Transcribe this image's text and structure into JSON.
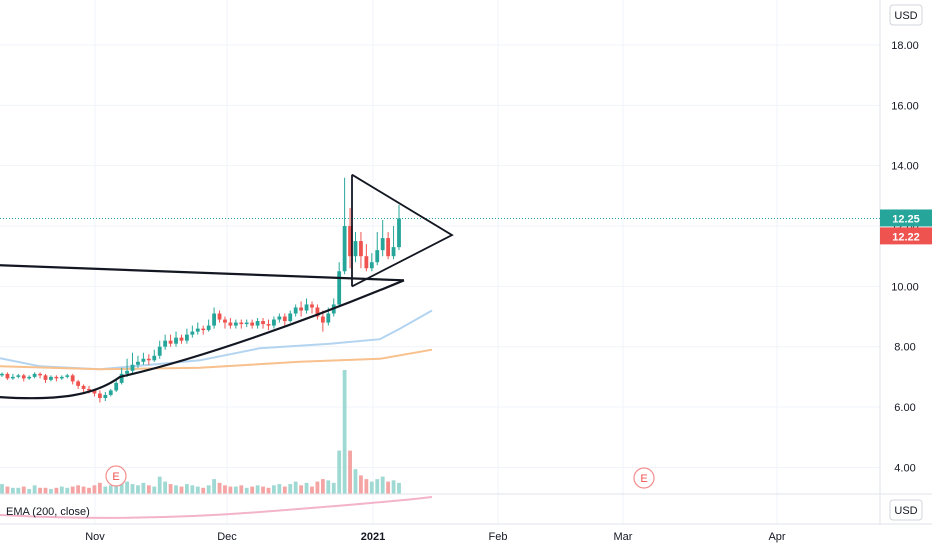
{
  "chart_data": {
    "type": "candlestick",
    "currency": "USD",
    "ylim": [
      3.0,
      19.0
    ],
    "y_ticks": [
      "18.00",
      "16.00",
      "14.00",
      "12.00",
      "10.00",
      "8.00",
      "6.00",
      "4.00"
    ],
    "x_ticks": [
      "Nov",
      "Dec",
      "2021",
      "Feb",
      "Mar",
      "Apr"
    ],
    "last_price": "12.25",
    "prev_price": "12.22",
    "candles": [
      [
        7.05,
        7.1,
        7.0,
        7.15
      ],
      [
        7.1,
        6.95,
        6.9,
        7.15
      ],
      [
        6.95,
        7.0,
        6.9,
        7.1
      ],
      [
        7.0,
        7.05,
        6.95,
        7.1
      ],
      [
        7.05,
        6.95,
        6.85,
        7.1
      ],
      [
        6.95,
        7.0,
        6.9,
        7.05
      ],
      [
        7.0,
        7.1,
        6.95,
        7.15
      ],
      [
        7.1,
        7.05,
        6.95,
        7.15
      ],
      [
        7.05,
        6.9,
        6.8,
        7.1
      ],
      [
        6.9,
        7.0,
        6.85,
        7.05
      ],
      [
        7.0,
        6.95,
        6.85,
        7.05
      ],
      [
        6.95,
        7.0,
        6.9,
        7.05
      ],
      [
        7.0,
        7.05,
        6.95,
        7.1
      ],
      [
        7.05,
        6.85,
        6.75,
        7.1
      ],
      [
        6.85,
        6.7,
        6.6,
        6.9
      ],
      [
        6.7,
        6.6,
        6.5,
        6.75
      ],
      [
        6.6,
        6.55,
        6.45,
        6.7
      ],
      [
        6.55,
        6.45,
        6.35,
        6.6
      ],
      [
        6.45,
        6.3,
        6.15,
        6.55
      ],
      [
        6.3,
        6.4,
        6.2,
        6.5
      ],
      [
        6.4,
        6.55,
        6.35,
        6.6
      ],
      [
        6.55,
        6.8,
        6.5,
        6.9
      ],
      [
        6.8,
        7.1,
        6.75,
        7.3
      ],
      [
        7.1,
        7.2,
        7.0,
        7.6
      ],
      [
        7.2,
        7.4,
        7.1,
        7.8
      ],
      [
        7.4,
        7.5,
        7.3,
        7.7
      ],
      [
        7.5,
        7.6,
        7.4,
        7.8
      ],
      [
        7.6,
        7.55,
        7.4,
        7.75
      ],
      [
        7.55,
        7.7,
        7.5,
        7.9
      ],
      [
        7.7,
        8.0,
        7.6,
        8.2
      ],
      [
        8.0,
        8.2,
        7.9,
        8.4
      ],
      [
        8.2,
        8.1,
        8.0,
        8.4
      ],
      [
        8.1,
        8.3,
        8.0,
        8.5
      ],
      [
        8.3,
        8.2,
        8.1,
        8.4
      ],
      [
        8.2,
        8.4,
        8.1,
        8.6
      ],
      [
        8.4,
        8.5,
        8.3,
        8.7
      ],
      [
        8.5,
        8.6,
        8.4,
        8.8
      ],
      [
        8.6,
        8.55,
        8.4,
        8.7
      ],
      [
        8.55,
        8.7,
        8.5,
        8.9
      ],
      [
        8.7,
        9.1,
        8.6,
        9.3
      ],
      [
        9.1,
        8.9,
        8.8,
        9.2
      ],
      [
        8.9,
        8.8,
        8.6,
        9.0
      ],
      [
        8.8,
        8.7,
        8.6,
        8.95
      ],
      [
        8.7,
        8.8,
        8.6,
        8.9
      ],
      [
        8.8,
        8.75,
        8.6,
        8.9
      ],
      [
        8.75,
        8.8,
        8.65,
        8.9
      ],
      [
        8.8,
        8.7,
        8.6,
        8.9
      ],
      [
        8.7,
        8.85,
        8.6,
        8.95
      ],
      [
        8.85,
        8.75,
        8.6,
        8.95
      ],
      [
        8.75,
        8.7,
        8.55,
        8.9
      ],
      [
        8.7,
        8.9,
        8.6,
        9.0
      ],
      [
        8.9,
        9.0,
        8.8,
        9.1
      ],
      [
        9.0,
        8.85,
        8.7,
        9.1
      ],
      [
        8.85,
        9.1,
        8.8,
        9.2
      ],
      [
        9.1,
        9.3,
        9.0,
        9.4
      ],
      [
        9.3,
        9.2,
        9.0,
        9.5
      ],
      [
        9.2,
        9.4,
        9.1,
        9.6
      ],
      [
        9.4,
        9.3,
        9.1,
        9.5
      ],
      [
        9.3,
        9.0,
        8.9,
        9.4
      ],
      [
        9.0,
        8.8,
        8.5,
        9.2
      ],
      [
        8.8,
        9.1,
        8.7,
        9.3
      ],
      [
        9.1,
        9.4,
        9.0,
        9.6
      ],
      [
        9.4,
        10.5,
        9.3,
        10.8
      ],
      [
        10.5,
        12.0,
        10.4,
        13.6
      ],
      [
        12.0,
        11.0,
        10.6,
        12.6
      ],
      [
        11.0,
        11.5,
        10.8,
        11.8
      ],
      [
        11.5,
        11.0,
        10.6,
        11.8
      ],
      [
        11.0,
        10.6,
        10.5,
        11.4
      ],
      [
        10.6,
        10.8,
        10.5,
        11.1
      ],
      [
        10.8,
        11.2,
        10.7,
        11.8
      ],
      [
        11.2,
        11.6,
        11.0,
        12.2
      ],
      [
        11.6,
        11.0,
        10.9,
        11.8
      ],
      [
        11.0,
        11.3,
        10.9,
        12.0
      ],
      [
        11.3,
        12.25,
        11.2,
        12.7
      ]
    ],
    "volume": [
      0.08,
      0.06,
      0.05,
      0.05,
      0.06,
      0.04,
      0.07,
      0.05,
      0.05,
      0.04,
      0.05,
      0.06,
      0.05,
      0.06,
      0.07,
      0.06,
      0.05,
      0.07,
      0.09,
      0.06,
      0.07,
      0.1,
      0.12,
      0.1,
      0.08,
      0.07,
      0.09,
      0.07,
      0.06,
      0.14,
      0.1,
      0.08,
      0.07,
      0.06,
      0.08,
      0.07,
      0.06,
      0.05,
      0.07,
      0.12,
      0.09,
      0.07,
      0.06,
      0.06,
      0.07,
      0.05,
      0.06,
      0.07,
      0.06,
      0.05,
      0.07,
      0.08,
      0.06,
      0.08,
      0.1,
      0.07,
      0.09,
      0.06,
      0.1,
      0.12,
      0.11,
      0.09,
      0.35,
      1.0,
      0.35,
      0.2,
      0.15,
      0.12,
      0.1,
      0.12,
      0.14,
      0.1,
      0.11,
      0.09
    ],
    "ema_blue": [
      [
        0,
        7.62
      ],
      [
        40,
        7.35
      ],
      [
        100,
        7.25
      ],
      [
        200,
        7.55
      ],
      [
        260,
        7.95
      ],
      [
        330,
        8.1
      ],
      [
        380,
        8.25
      ],
      [
        400,
        8.6
      ],
      [
        432,
        9.2
      ]
    ],
    "ema_orange": [
      [
        0,
        7.35
      ],
      [
        100,
        7.25
      ],
      [
        200,
        7.3
      ],
      [
        300,
        7.5
      ],
      [
        380,
        7.6
      ],
      [
        432,
        7.9
      ]
    ],
    "colors": {
      "up": "#26a69a",
      "down": "#ef5350",
      "up_volume": "#9fd9d3",
      "down_volume": "#f4a4a3",
      "ema_blue": "#b3d4f0",
      "ema_orange": "#f7c08c",
      "ema_pane": "#f3b3c8",
      "drawing": "#131722",
      "grid": "#f0f3fa",
      "price_line": "#26a69a"
    }
  },
  "indicator_label": "EMA (200, close)",
  "indicator_currency": "USD",
  "earnings_marker": "E",
  "axis_currency": "USD"
}
